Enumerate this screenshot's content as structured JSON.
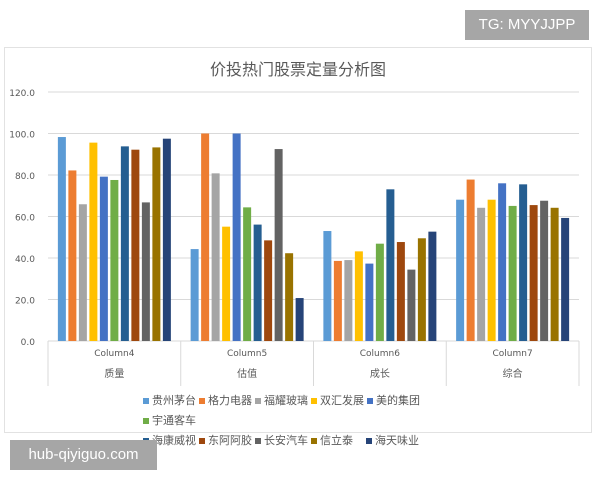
{
  "watermarks": {
    "top": "TG: MYYJJPP",
    "bottom": "hub-qiyiguo.com"
  },
  "chart_data": {
    "type": "bar",
    "title": "价投热门股票定量分析图",
    "xlabel": "",
    "ylabel": "",
    "ylim": [
      0,
      120
    ],
    "yticks": [
      "0.0",
      "20.0",
      "40.0",
      "60.0",
      "80.0",
      "100.0",
      "120.0"
    ],
    "grid": true,
    "legend_position": "bottom",
    "categories": [
      {
        "top": "Column4",
        "bottom": "质量"
      },
      {
        "top": "Column5",
        "bottom": "估值"
      },
      {
        "top": "Column6",
        "bottom": "成长"
      },
      {
        "top": "Column7",
        "bottom": "综合"
      }
    ],
    "series": [
      {
        "name": "贵州茅台",
        "color": "#5B9BD5",
        "values": [
          98.3,
          44.3,
          53.0,
          68.1
        ]
      },
      {
        "name": "格力电器",
        "color": "#ED7D31",
        "values": [
          82.2,
          100.0,
          38.6,
          77.8
        ]
      },
      {
        "name": "福耀玻璃",
        "color": "#A5A5A5",
        "values": [
          65.9,
          80.8,
          39.0,
          64.2
        ]
      },
      {
        "name": "双汇发展",
        "color": "#FFC000",
        "values": [
          95.6,
          55.1,
          43.2,
          68.1
        ]
      },
      {
        "name": "美的集团",
        "color": "#4472C4",
        "values": [
          79.2,
          100.0,
          37.3,
          76.0
        ]
      },
      {
        "name": "宇通客车",
        "color": "#70AD47",
        "values": [
          77.6,
          64.4,
          46.9,
          65.1
        ]
      },
      {
        "name": "海康威视",
        "color": "#255E91",
        "values": [
          93.8,
          56.1,
          73.1,
          75.5
        ]
      },
      {
        "name": "东阿阿胶",
        "color": "#9E480E",
        "values": [
          92.2,
          48.5,
          47.7,
          65.5
        ]
      },
      {
        "name": "长安汽车",
        "color": "#636363",
        "values": [
          66.8,
          92.5,
          34.4,
          67.6
        ]
      },
      {
        "name": "信立泰",
        "color": "#997300",
        "values": [
          93.3,
          42.3,
          49.5,
          64.2
        ]
      },
      {
        "name": "海天味业",
        "color": "#264478",
        "values": [
          97.5,
          20.7,
          52.7,
          59.3
        ]
      }
    ]
  }
}
